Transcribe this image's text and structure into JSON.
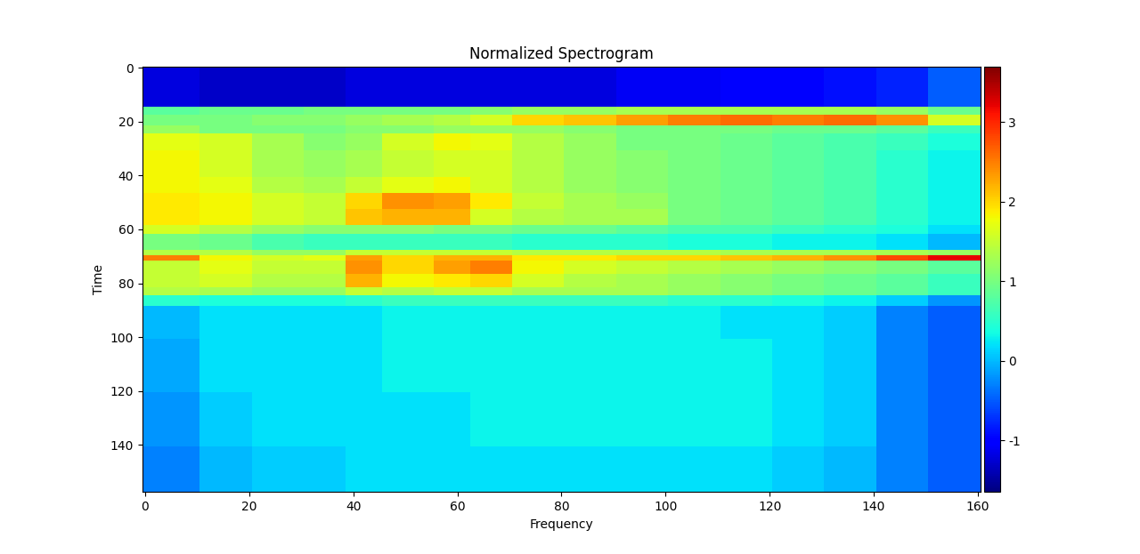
{
  "chart_data": {
    "type": "heatmap",
    "title": "Normalized Spectrogram",
    "x_label": "Frequency",
    "y_label": "Time",
    "xlim": [
      -0.5,
      160.5
    ],
    "ylim": [
      157.5,
      -0.5
    ],
    "xticks": [
      0,
      20,
      40,
      60,
      80,
      100,
      120,
      140,
      160
    ],
    "yticks": [
      0,
      20,
      40,
      60,
      80,
      100,
      120,
      140
    ],
    "cell_x_edges": [
      -0.5,
      10.5,
      20.5,
      30.5,
      38.5,
      45.5,
      55.5,
      62.5,
      70.5,
      80.5,
      90.5,
      100.5,
      110.5,
      120.5,
      130.5,
      140.5,
      150.5,
      160.5
    ],
    "cell_y_edges": [
      -0.5,
      14.5,
      17.5,
      21.5,
      24.5,
      30.5,
      40.5,
      46.5,
      52.5,
      58.5,
      61.5,
      67.5,
      69.5,
      71.5,
      76.5,
      81.5,
      84.5,
      88.5,
      100.5,
      120.5,
      140.5,
      157.5
    ],
    "cells": [
      [
        -1.2,
        -1.3,
        -1.3,
        -1.3,
        -1.2,
        -1.2,
        -1.2,
        -1.2,
        -1.2,
        -1.2,
        -1.1,
        -1.1,
        -1.0,
        -1.0,
        -0.9,
        -0.8,
        -0.5
      ],
      [
        0.8,
        0.9,
        0.9,
        1.0,
        1.0,
        1.0,
        1.0,
        1.1,
        1.2,
        1.2,
        1.3,
        1.3,
        1.3,
        1.3,
        1.3,
        1.2,
        0.9
      ],
      [
        1.0,
        1.0,
        1.1,
        1.1,
        1.2,
        1.3,
        1.4,
        1.6,
        2.0,
        2.1,
        2.3,
        2.5,
        2.6,
        2.5,
        2.6,
        2.4,
        1.6
      ],
      [
        1.2,
        1.0,
        1.0,
        1.0,
        1.1,
        1.1,
        1.2,
        1.2,
        1.2,
        1.1,
        1.0,
        1.0,
        1.0,
        0.9,
        0.9,
        0.8,
        0.6
      ],
      [
        1.7,
        1.6,
        1.3,
        1.1,
        1.2,
        1.6,
        1.8,
        1.7,
        1.4,
        1.2,
        1.0,
        1.0,
        0.9,
        0.8,
        0.7,
        0.6,
        0.4
      ],
      [
        1.8,
        1.6,
        1.3,
        1.2,
        1.3,
        1.5,
        1.6,
        1.6,
        1.4,
        1.2,
        1.1,
        1.0,
        0.9,
        0.8,
        0.7,
        0.5,
        0.3
      ],
      [
        1.8,
        1.7,
        1.4,
        1.3,
        1.5,
        1.7,
        1.8,
        1.6,
        1.4,
        1.2,
        1.1,
        1.0,
        0.9,
        0.8,
        0.7,
        0.5,
        0.3
      ],
      [
        1.9,
        1.8,
        1.6,
        1.5,
        2.0,
        2.4,
        2.3,
        1.9,
        1.5,
        1.3,
        1.2,
        1.0,
        0.9,
        0.8,
        0.7,
        0.5,
        0.3
      ],
      [
        1.9,
        1.8,
        1.6,
        1.5,
        2.1,
        2.2,
        2.2,
        1.6,
        1.4,
        1.3,
        1.3,
        1.0,
        0.9,
        0.8,
        0.7,
        0.5,
        0.3
      ],
      [
        1.6,
        1.4,
        1.2,
        1.1,
        1.1,
        1.1,
        1.0,
        1.0,
        0.9,
        0.9,
        0.8,
        0.7,
        0.7,
        0.6,
        0.5,
        0.4,
        0.2
      ],
      [
        1.0,
        0.9,
        0.7,
        0.6,
        0.6,
        0.6,
        0.6,
        0.6,
        0.5,
        0.5,
        0.5,
        0.4,
        0.4,
        0.3,
        0.3,
        0.2,
        0.0
      ],
      [
        1.4,
        1.4,
        1.2,
        1.2,
        1.5,
        1.5,
        1.5,
        1.5,
        1.4,
        1.4,
        1.4,
        1.4,
        1.3,
        1.3,
        1.3,
        1.3,
        1.2
      ],
      [
        2.5,
        1.8,
        1.6,
        1.7,
        2.3,
        2.0,
        2.2,
        2.2,
        1.9,
        1.9,
        2.0,
        2.0,
        2.1,
        2.2,
        2.4,
        2.8,
        3.2
      ],
      [
        1.5,
        1.7,
        1.5,
        1.5,
        2.4,
        2.0,
        2.3,
        2.5,
        1.8,
        1.6,
        1.5,
        1.4,
        1.3,
        1.2,
        1.1,
        1.0,
        0.8
      ],
      [
        1.5,
        1.6,
        1.4,
        1.4,
        2.2,
        1.8,
        1.9,
        2.0,
        1.6,
        1.4,
        1.3,
        1.2,
        1.1,
        1.0,
        0.9,
        0.8,
        0.6
      ],
      [
        1.4,
        1.3,
        1.2,
        1.2,
        1.5,
        1.4,
        1.5,
        1.5,
        1.3,
        1.3,
        1.3,
        1.2,
        1.1,
        1.0,
        0.9,
        0.8,
        0.6
      ],
      [
        0.5,
        0.4,
        0.4,
        0.4,
        0.5,
        0.6,
        0.6,
        0.6,
        0.6,
        0.6,
        0.6,
        0.5,
        0.5,
        0.4,
        0.3,
        0.1,
        -0.2
      ],
      [
        0.0,
        0.2,
        0.2,
        0.2,
        0.2,
        0.3,
        0.3,
        0.3,
        0.3,
        0.3,
        0.3,
        0.3,
        0.2,
        0.2,
        0.1,
        -0.3,
        -0.5
      ],
      [
        -0.1,
        0.2,
        0.2,
        0.2,
        0.2,
        0.3,
        0.3,
        0.3,
        0.3,
        0.3,
        0.3,
        0.3,
        0.3,
        0.2,
        0.1,
        -0.3,
        -0.5
      ],
      [
        -0.2,
        0.1,
        0.2,
        0.2,
        0.2,
        0.2,
        0.2,
        0.3,
        0.3,
        0.3,
        0.3,
        0.3,
        0.3,
        0.2,
        0.1,
        -0.3,
        -0.5
      ],
      [
        -0.3,
        0.0,
        0.1,
        0.1,
        0.2,
        0.2,
        0.2,
        0.2,
        0.2,
        0.2,
        0.2,
        0.2,
        0.2,
        0.1,
        0.0,
        -0.3,
        -0.5
      ]
    ],
    "colorbar_range": [
      -1.65,
      3.7
    ],
    "colorbar_ticks": [
      -1,
      0,
      1,
      2,
      3
    ]
  }
}
